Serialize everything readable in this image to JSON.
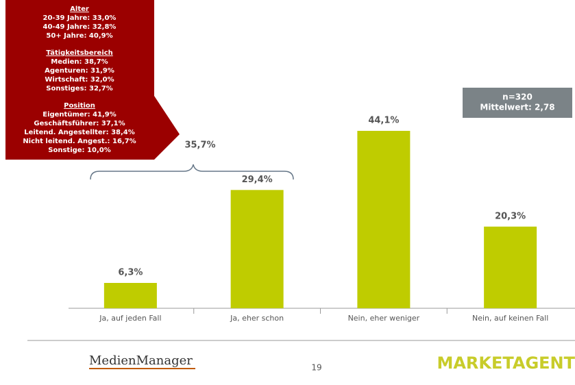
{
  "chart_data": {
    "type": "bar",
    "categories": [
      "Ja, auf jeden Fall",
      "Ja, eher schon",
      "Nein, eher weniger",
      "Nein, auf keinen Fall"
    ],
    "values": [
      6.3,
      29.4,
      44.1,
      20.3
    ],
    "value_labels": [
      "6,3%",
      "29,4%",
      "44,1%",
      "20,3%"
    ],
    "color": "#bfcc00",
    "annotations": [
      "35,7%"
    ],
    "info_box": [
      "n=320",
      "Mittelwert: 2,78"
    ],
    "callout": {
      "sections": [
        {
          "heading": "Alter",
          "lines": [
            "20-39 Jahre: 33,0%",
            "40-49 Jahre: 32,8%",
            "50+ Jahre: 40,9%"
          ]
        },
        {
          "heading": "Tätigkeitsbereich",
          "lines": [
            "Medien: 38,7%",
            "Agenturen: 31,9%",
            "Wirtschaft: 32,0%",
            "Sonstiges: 32,7%"
          ]
        },
        {
          "heading": "Position",
          "lines": [
            "Eigentümer: 41,9%",
            "Geschäftsführer: 37,1%",
            "Leitend. Angestellter: 38,4%",
            "Nicht leitend. Angest.: 16,7%",
            "Sonstige: 10,0%"
          ]
        }
      ]
    }
  },
  "footer": {
    "page": "19",
    "logos": [
      "MedienManager",
      "MARKETAGENT"
    ]
  }
}
